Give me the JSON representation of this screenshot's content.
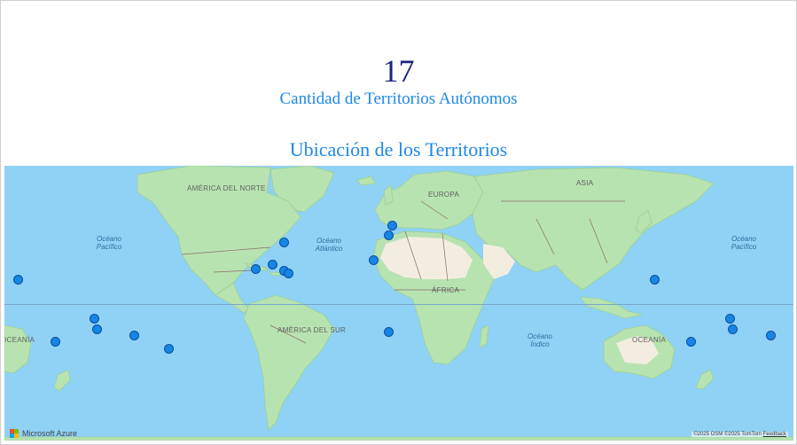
{
  "kpi": {
    "value": "17",
    "label": "Cantidad de Territorios Autónomos"
  },
  "map": {
    "title": "Ubicación de los Territorios",
    "ocean_labels": {
      "pacific_west": "Océano\nPacífico",
      "atlantic": "Océano\nAtlántico",
      "pacific_east": "Océano\nPacífico",
      "indian": "Océano\nÍndico"
    },
    "region_labels": {
      "north_america": "AMÉRICA DEL NORTE",
      "europe": "EUROPA",
      "asia": "ASIA",
      "africa": "ÁFRICA",
      "south_america": "AMÉRICA DEL SUR",
      "oceania_east": "OCEANÍA",
      "oceania_west": "OCEANÍA"
    },
    "logo_text": "Microsoft Azure",
    "attribution": "©2025 OSM  ©2025 TomTom",
    "feedback_label": "Feedback",
    "colors": {
      "marker": "#1685e6",
      "water": "#8fd2f6",
      "land": "#b7e3b0"
    }
  }
}
